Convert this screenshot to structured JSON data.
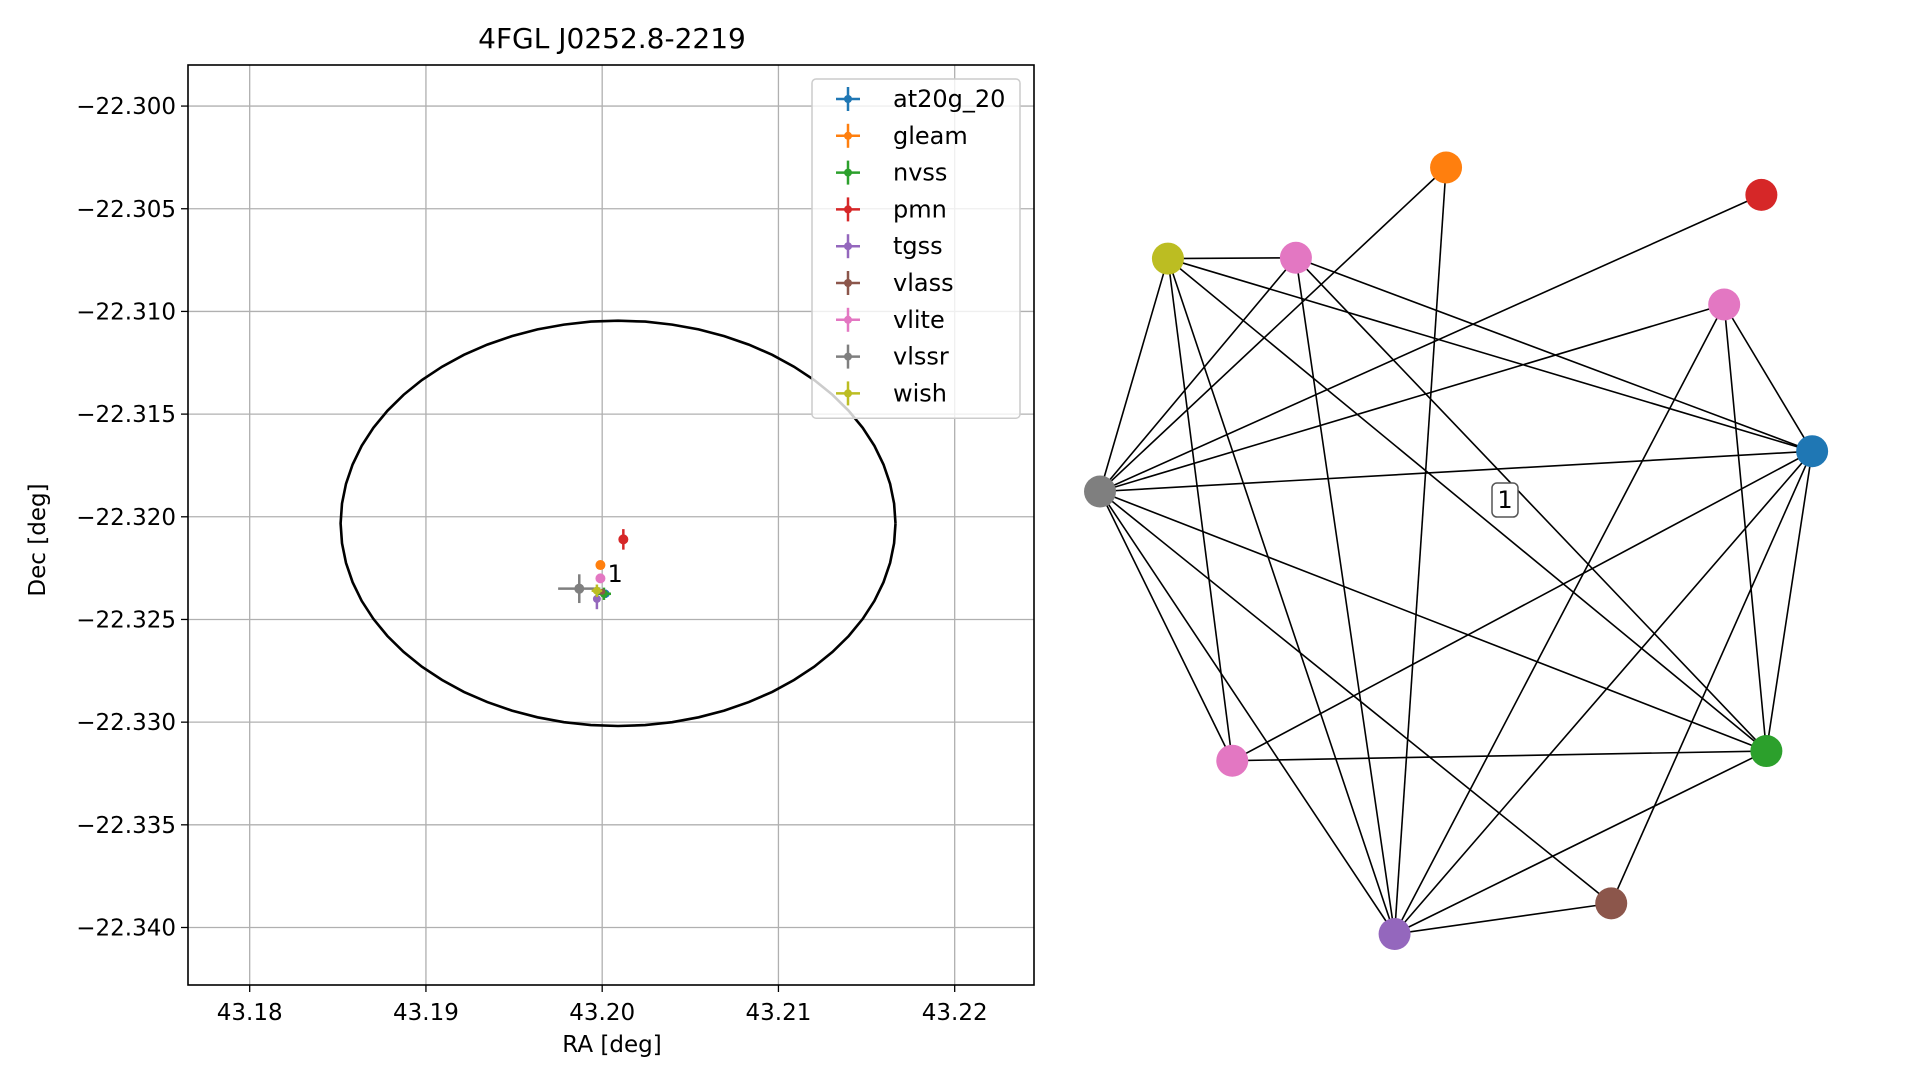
{
  "chart_data": [
    {
      "type": "scatter",
      "title": "4FGL J0252.8-2219",
      "xlabel": "RA [deg]",
      "ylabel": "Dec [deg]",
      "xlim": [
        43.1765,
        43.2245
      ],
      "ylim": [
        -22.3428,
        -22.298
      ],
      "grid": true,
      "legend_position": "top-right",
      "x_ticks": [
        43.18,
        43.19,
        43.2,
        43.21,
        43.22
      ],
      "x_tick_labels": [
        "43.18",
        "43.19",
        "43.20",
        "43.21",
        "43.22"
      ],
      "y_ticks": [
        -22.3,
        -22.305,
        -22.31,
        -22.315,
        -22.32,
        -22.325,
        -22.33,
        -22.335,
        -22.34
      ],
      "y_tick_labels": [
        "−22.300",
        "−22.305",
        "−22.310",
        "−22.315",
        "−22.320",
        "−22.325",
        "−22.330",
        "−22.335",
        "−22.340"
      ],
      "ellipse": {
        "center_ra": 43.2009,
        "center_dec": -22.32032,
        "semi_ra": 0.01574,
        "semi_dec": 0.00987,
        "color": "#000000"
      },
      "series": [
        {
          "name": "at20g_20",
          "color": "#1f77b4",
          "ra": 43.2002,
          "dec": -22.32375,
          "ra_err": 0.0002,
          "dec_err": 0.0002,
          "marker_size": 4
        },
        {
          "name": "gleam",
          "color": "#ff7f0e",
          "ra": 43.1999,
          "dec": -22.32235,
          "ra_err": 0.0,
          "dec_err": 0.0,
          "marker_size": 5
        },
        {
          "name": "nvss",
          "color": "#2ca02c",
          "ra": 43.2001,
          "dec": -22.32375,
          "ra_err": 0.0004,
          "dec_err": 0.0003,
          "marker_size": 4
        },
        {
          "name": "pmn",
          "color": "#d62728",
          "ra": 43.2012,
          "dec": -22.3211,
          "ra_err": 0.0001,
          "dec_err": 0.0005,
          "marker_size": 5
        },
        {
          "name": "tgss",
          "color": "#9467bd",
          "ra": 43.1997,
          "dec": -22.324,
          "ra_err": 0.0002,
          "dec_err": 0.0005,
          "marker_size": 4
        },
        {
          "name": "vlass",
          "color": "#8c564b",
          "ra": 43.2,
          "dec": -22.32365,
          "ra_err": 0.0001,
          "dec_err": 0.0001,
          "marker_size": 3
        },
        {
          "name": "vlite",
          "color": "#e377c2",
          "ra": 43.1999,
          "dec": -22.323,
          "ra_err": 0.0001,
          "dec_err": 0.0001,
          "marker_size": 5
        },
        {
          "name": "vlssr",
          "color": "#7f7f7f",
          "ra": 43.1987,
          "dec": -22.3235,
          "ra_err": 0.0012,
          "dec_err": 0.0007,
          "marker_size": 5
        },
        {
          "name": "wish",
          "color": "#bcbd22",
          "ra": 43.1997,
          "dec": -22.3236,
          "ra_err": 0.0003,
          "dec_err": 0.0003,
          "marker_size": 4
        }
      ],
      "annotations": [
        {
          "text": "1",
          "ra": 43.2003,
          "dec": -22.3224
        }
      ]
    },
    {
      "type": "network",
      "edge_color": "#000000",
      "nodes": [
        {
          "id": "blue",
          "color": "#1f77b4",
          "pos": [
            0.996,
            0.599
          ]
        },
        {
          "id": "orange",
          "color": "#ff7f0e",
          "pos": [
            0.484,
            0.951
          ]
        },
        {
          "id": "green",
          "color": "#2ca02c",
          "pos": [
            0.932,
            0.227
          ]
        },
        {
          "id": "red",
          "color": "#d62728",
          "pos": [
            0.925,
            0.917
          ]
        },
        {
          "id": "purple",
          "color": "#9467bd",
          "pos": [
            0.412,
            0.0
          ]
        },
        {
          "id": "brown",
          "color": "#8c564b",
          "pos": [
            0.715,
            0.038
          ]
        },
        {
          "id": "pink-top",
          "color": "#e377c2",
          "pos": [
            0.274,
            0.839
          ]
        },
        {
          "id": "pink-right",
          "color": "#e377c2",
          "pos": [
            0.873,
            0.781
          ]
        },
        {
          "id": "pink-bottom",
          "color": "#e377c2",
          "pos": [
            0.185,
            0.215
          ]
        },
        {
          "id": "gray",
          "color": "#7f7f7f",
          "pos": [
            0.0,
            0.549
          ]
        },
        {
          "id": "olive",
          "color": "#bcbd22",
          "pos": [
            0.095,
            0.838
          ]
        }
      ],
      "edges": [
        [
          "gray",
          "orange"
        ],
        [
          "gray",
          "red"
        ],
        [
          "gray",
          "pink-top"
        ],
        [
          "gray",
          "pink-right"
        ],
        [
          "gray",
          "olive"
        ],
        [
          "gray",
          "blue"
        ],
        [
          "gray",
          "green"
        ],
        [
          "gray",
          "pink-bottom"
        ],
        [
          "gray",
          "purple"
        ],
        [
          "gray",
          "brown"
        ],
        [
          "olive",
          "pink-top"
        ],
        [
          "olive",
          "blue"
        ],
        [
          "olive",
          "green"
        ],
        [
          "olive",
          "pink-bottom"
        ],
        [
          "olive",
          "purple"
        ],
        [
          "pink-top",
          "blue"
        ],
        [
          "pink-top",
          "green"
        ],
        [
          "pink-top",
          "purple"
        ],
        [
          "pink-right",
          "blue"
        ],
        [
          "pink-right",
          "green"
        ],
        [
          "pink-right",
          "purple"
        ],
        [
          "blue",
          "pink-bottom"
        ],
        [
          "blue",
          "purple"
        ],
        [
          "blue",
          "brown"
        ],
        [
          "blue",
          "green"
        ],
        [
          "green",
          "pink-bottom"
        ],
        [
          "green",
          "purple"
        ],
        [
          "purple",
          "orange"
        ],
        [
          "purple",
          "brown"
        ]
      ],
      "edge_label": {
        "text": "1"
      }
    }
  ]
}
